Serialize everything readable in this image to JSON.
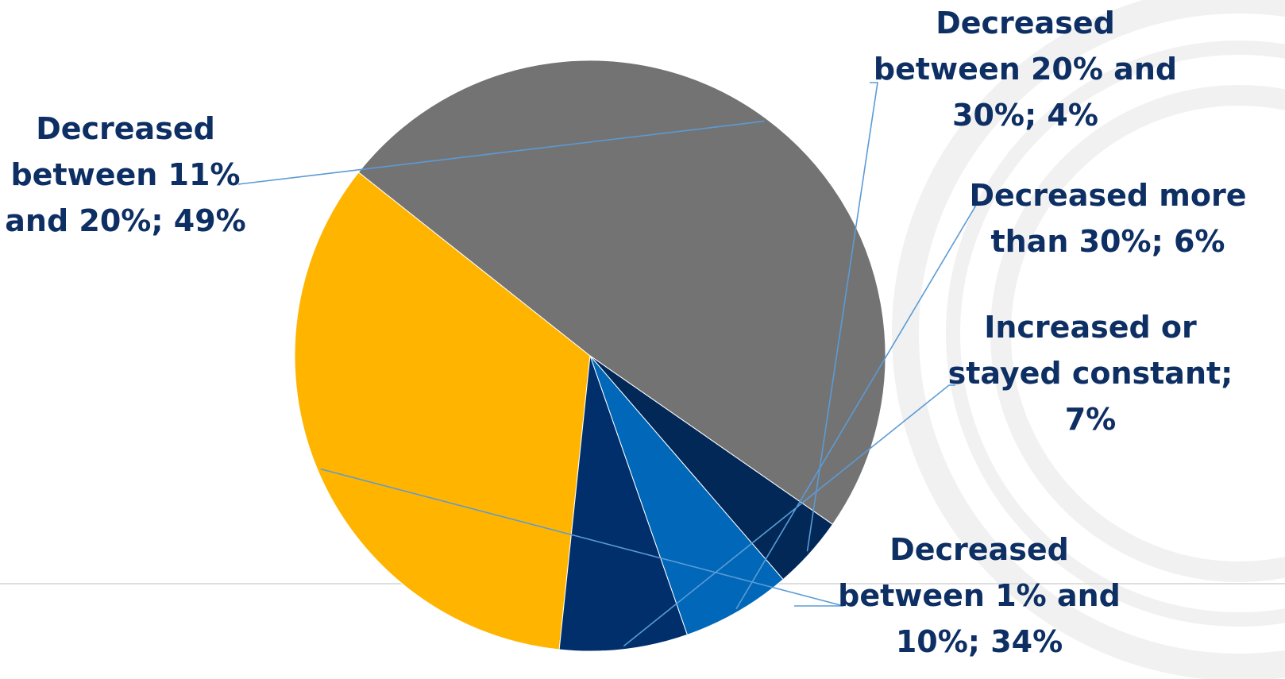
{
  "chart_data": {
    "type": "pie",
    "slices": [
      {
        "name": "Decreased between 1% and 10%",
        "value": 34,
        "color": "#ffb500",
        "label_lines": [
          "Decreased",
          "between 1% and",
          "10%; 34%"
        ]
      },
      {
        "name": "Decreased between 11% and 20%",
        "value": 49,
        "color": "#737373",
        "label_lines": [
          "Decreased",
          "between 11%",
          "and 20%; 49%"
        ]
      },
      {
        "name": "Decreased between 20% and 30%",
        "value": 4,
        "color": "#022857",
        "label_lines": [
          "Decreased",
          "between 20% and",
          "30%; 4%"
        ]
      },
      {
        "name": "Decreased more than 30%",
        "value": 6,
        "color": "#0067b9",
        "label_lines": [
          "Decreased more",
          "than 30%; 6%"
        ]
      },
      {
        "name": "Increased or stayed constant",
        "value": 7,
        "color": "#002f6c",
        "label_lines": [
          "Increased or",
          "stayed constant;",
          "7%"
        ]
      }
    ],
    "label_color": "#0e2f63",
    "leader_color": "#5b9bd5"
  }
}
